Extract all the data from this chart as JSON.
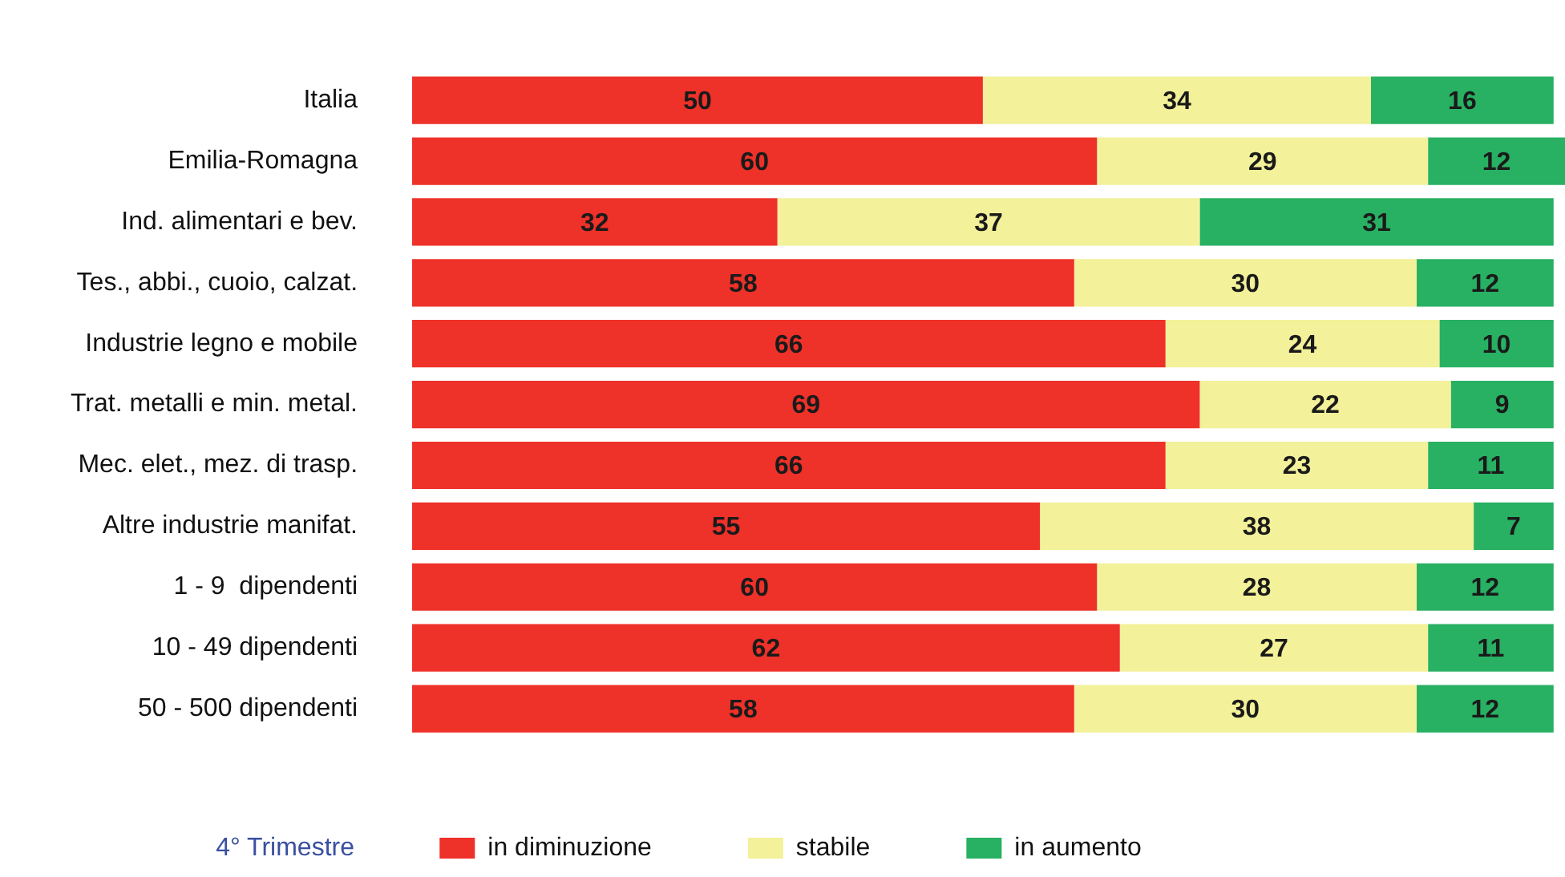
{
  "chart_data": {
    "type": "bar",
    "orientation": "horizontal",
    "stacked": true,
    "data_labels": true,
    "grid": false,
    "legend": "bottom",
    "tick_labels": "y",
    "legend_title": "4° Trimestre",
    "categories": [
      "Italia",
      "Emilia-Romagna",
      "Ind. alimentari e bev.",
      "Tes., abbi., cuoio, calzat.",
      "Industrie legno e mobile",
      "Trat. metalli e min. metal.",
      "Mec. elet., mez. di trasp.",
      "Altre industrie manifat.",
      "1 - 9  dipendenti",
      "10 - 49 dipendenti",
      "50 - 500 dipendenti"
    ],
    "xlim": [
      0,
      101
    ],
    "series": [
      {
        "name": "in diminuzione",
        "color": "#ee3129",
        "values": [
          50,
          60,
          32,
          58,
          66,
          69,
          66,
          55,
          60,
          62,
          58
        ]
      },
      {
        "name": "stabile",
        "color": "#f3f199",
        "values": [
          34,
          29,
          37,
          30,
          24,
          22,
          23,
          38,
          28,
          27,
          30
        ]
      },
      {
        "name": "in aumento",
        "color": "#28b063",
        "values": [
          16,
          12,
          31,
          12,
          10,
          9,
          11,
          7,
          12,
          11,
          12
        ]
      }
    ]
  }
}
